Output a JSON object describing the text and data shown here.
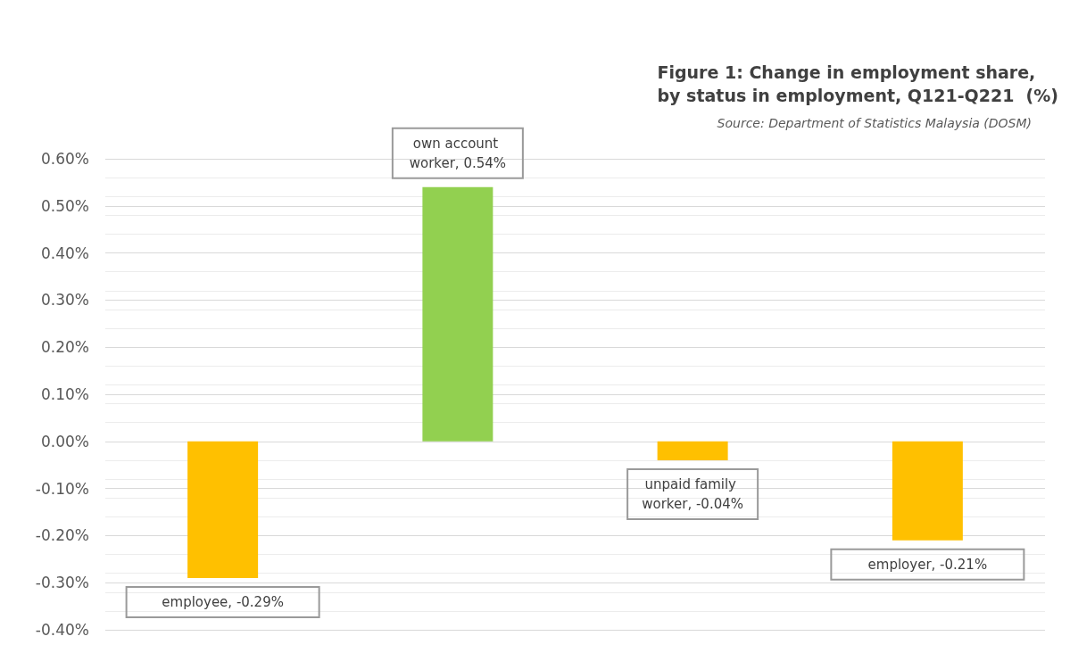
{
  "chart_data": {
    "type": "bar",
    "title": "Figure 1: Change in employment share,\nby status in employment, Q121-Q221  (%)",
    "annotations": [
      "Source: Department of Statistics Malaysia (DOSM)"
    ],
    "categories": [
      null,
      null,
      null,
      null
    ],
    "values": [
      -0.29,
      0.54,
      -0.04,
      -0.21
    ],
    "colors": [
      "#ffc000",
      "#92d050",
      "#ffc000",
      "#ffc000"
    ],
    "value_labels": [
      "employee, -0.29%",
      "own account worker, 0.54%",
      "unpaid family worker, -0.04%",
      "employer, -0.21%"
    ],
    "ylim": [
      -0.4,
      0.6
    ],
    "yticks": [
      {
        "value": -0.4,
        "label": "-0.40%"
      },
      {
        "value": -0.3,
        "label": "-0.30%"
      },
      {
        "value": -0.2,
        "label": "-0.20%"
      },
      {
        "value": -0.1,
        "label": "-0.10%"
      },
      {
        "value": 0,
        "label": "0.00%"
      },
      {
        "value": 0.1,
        "label": "0.10%"
      },
      {
        "value": 0.2,
        "label": "0.20%"
      },
      {
        "value": 0.3,
        "label": "0.30%"
      },
      {
        "value": 0.4,
        "label": "0.40%"
      },
      {
        "value": 0.5,
        "label": "0.50%"
      },
      {
        "value": 0.6,
        "label": "0.60%"
      }
    ],
    "grid": "y"
  }
}
